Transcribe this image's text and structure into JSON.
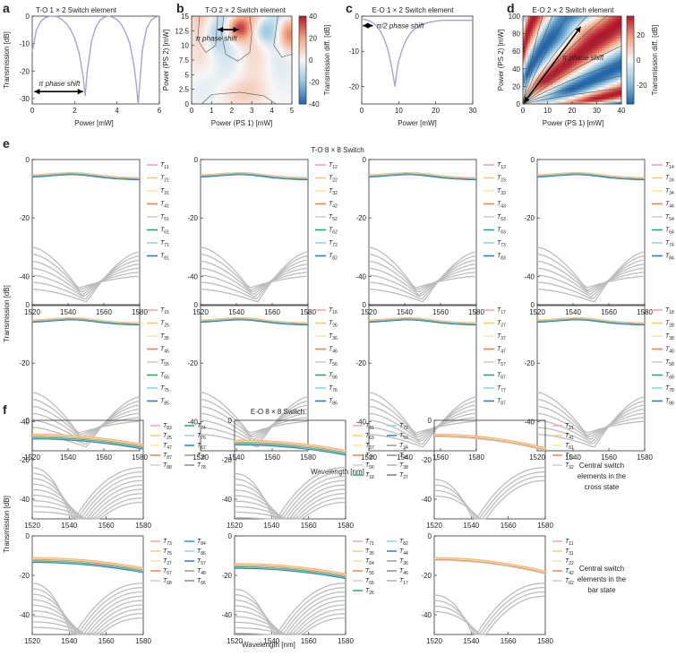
{
  "panel_letters": [
    "a",
    "b",
    "c",
    "d",
    "e",
    "f"
  ],
  "chart_data": [
    {
      "id": "a",
      "type": "line",
      "title": "T-O 1 × 2 Switch element",
      "xlabel": "Power [mW]",
      "ylabel": "Transmission [dB]",
      "xlim": [
        0,
        6
      ],
      "ylim": [
        -32,
        0
      ],
      "xticks": [
        "0",
        "2",
        "4",
        "6"
      ],
      "yticks": [
        "0",
        "-10",
        "-20",
        "-30"
      ],
      "annotation": "π phase shift",
      "arrow": {
        "x1": 0.1,
        "x2": 2.4,
        "y": -27.5
      },
      "series": [
        {
          "color": "#a7a4d2",
          "x": [
            0,
            0.2,
            0.4,
            0.6,
            0.8,
            1.0,
            1.2,
            1.4,
            1.6,
            1.8,
            2.0,
            2.2,
            2.4,
            2.5,
            2.6,
            2.8,
            3.0,
            3.2,
            3.4,
            3.6,
            3.8,
            4.0,
            4.2,
            4.4,
            4.6,
            4.8,
            4.9,
            5.0,
            5.2,
            5.4,
            5.6,
            5.8,
            6.0
          ],
          "y": [
            -13,
            -5,
            -2,
            -0.6,
            -0.1,
            0,
            -0.3,
            -1.2,
            -2.6,
            -4.8,
            -8,
            -13,
            -22,
            -29,
            -20,
            -9,
            -4,
            -1.5,
            -0.4,
            0,
            -0.4,
            -1.3,
            -3,
            -5.8,
            -10,
            -18,
            -24,
            -32,
            -12,
            -4.5,
            -1.6,
            -0.4,
            0
          ]
        }
      ]
    },
    {
      "id": "b",
      "type": "heatmap",
      "title": "T-O 2 × 2 Switch element",
      "xlabel": "Power (PS 1) [mW]",
      "ylabel": "Power (PS 2) [mW]",
      "colorbar_label": "Transmission diff. [dB]",
      "xlim": [
        0,
        5
      ],
      "ylim": [
        0,
        15
      ],
      "xticks": [
        "0",
        "1",
        "2",
        "3",
        "4",
        "5"
      ],
      "yticks": [
        "0",
        "2.5",
        "5",
        "7.5",
        "10",
        "12.5",
        "15"
      ],
      "zlim": [
        -40,
        40
      ],
      "cticks": [
        "40",
        "20",
        "0",
        "-20",
        "-40"
      ],
      "annotation": "π phase shift"
    },
    {
      "id": "c",
      "type": "line",
      "title": "E-O 1 × 2 Switch element",
      "xlabel": "Power  [mW]",
      "ylabel": "Transmission [dB]",
      "xlim": [
        0,
        30
      ],
      "ylim": [
        -25,
        0
      ],
      "xticks": [
        "0",
        "10",
        "20",
        "30"
      ],
      "yticks": [
        "0",
        "-10",
        "-20"
      ],
      "annotation": "π/2 phase shift",
      "arrow": {
        "x1": 0.3,
        "x2": 3.0,
        "y": -2.7
      },
      "series": [
        {
          "color": "#a7a4d2",
          "x": [
            0,
            1,
            2,
            3,
            4,
            5,
            6,
            7,
            7.5,
            8,
            8.5,
            9,
            9.5,
            10,
            11,
            12,
            13,
            14,
            16,
            18,
            20,
            22,
            24,
            26,
            28,
            30
          ],
          "y": [
            -0.8,
            -1,
            -1.3,
            -1.9,
            -2.8,
            -4.2,
            -6.3,
            -9.3,
            -11.5,
            -14,
            -17,
            -20,
            -15.5,
            -12.8,
            -9.3,
            -6.8,
            -5.1,
            -3.9,
            -2.5,
            -1.8,
            -1.4,
            -1.2,
            -1.2,
            -1.2,
            -1.2,
            -1.2
          ]
        }
      ]
    },
    {
      "id": "d",
      "type": "heatmap",
      "title": "E-O 2 × 2 Switch element",
      "xlabel": "Power (PS 1) [mW]",
      "ylabel": "Power (PS 2) [mW]",
      "colorbar_label": "Transmission diff. [dB]",
      "xlim": [
        0,
        40
      ],
      "ylim": [
        0,
        100
      ],
      "xticks": [
        "0",
        "10",
        "20",
        "30",
        "40"
      ],
      "yticks": [
        "0",
        "20",
        "40",
        "60",
        "80",
        "100"
      ],
      "zlim": [
        -35,
        35
      ],
      "cticks": [
        "20",
        "0",
        "-20"
      ],
      "annotation": "π phase shift"
    },
    {
      "id": "e",
      "type": "line",
      "title": "T-O 8 × 8 Switch",
      "xlabel": "Wavelength [nm]",
      "ylabel": "Transmission [dB]",
      "xlim": [
        1520,
        1580
      ],
      "ylim": [
        -50,
        0
      ],
      "xticks": [
        "1520",
        "1540",
        "1560",
        "1580"
      ],
      "yticks": [
        "0",
        "-20",
        "-40"
      ],
      "legend_colors": [
        "#f3a6ae",
        "#f2cf6c",
        "#fbe7a0",
        "#f1844c",
        "#cfcfcf",
        "#2aa86d",
        "#8fd7d3",
        "#357eb8"
      ],
      "subplots": [
        {
          "legend": [
            "T11",
            "T21",
            "T31",
            "T41",
            "T51",
            "T61",
            "T71",
            "T81"
          ]
        },
        {
          "legend": [
            "T12",
            "T22",
            "T32",
            "T42",
            "T52",
            "T62",
            "T72",
            "T82"
          ]
        },
        {
          "legend": [
            "T13",
            "T23",
            "T33",
            "T43",
            "T53",
            "T63",
            "T73",
            "T83"
          ]
        },
        {
          "legend": [
            "T14",
            "T24",
            "T34",
            "T44",
            "T54",
            "T64",
            "T74",
            "T84"
          ]
        },
        {
          "legend": [
            "T15",
            "T25",
            "T35",
            "T45",
            "T55",
            "T65",
            "T75",
            "T85"
          ]
        },
        {
          "legend": [
            "T16",
            "T26",
            "T36",
            "T46",
            "T56",
            "T66",
            "T76",
            "T86"
          ]
        },
        {
          "legend": [
            "T17",
            "T27",
            "T37",
            "T47",
            "T57",
            "T67",
            "T77",
            "T87"
          ]
        },
        {
          "legend": [
            "T18",
            "T28",
            "T38",
            "T48",
            "T58",
            "T68",
            "T78",
            "T88"
          ]
        }
      ]
    },
    {
      "id": "f",
      "type": "line",
      "title": "E-O 8 × 8 Switch",
      "xlabel": "Wavelength [nm]",
      "ylabel": "Transmission [dB]",
      "xlim": [
        1520,
        1580
      ],
      "ylim": [
        -50,
        0
      ],
      "xticks": [
        "1520",
        "1540",
        "1560",
        "1580"
      ],
      "yticks": [
        "0",
        "-20",
        "-40"
      ],
      "row_labels": [
        [
          "Central switch",
          "elements in the",
          "cross state"
        ],
        [
          "Central switch",
          "elements in the",
          "bar state"
        ]
      ],
      "subplots": [
        {
          "legend": [
            "T83",
            "T25",
            "T47",
            "T87",
            "T88",
            "T74",
            "T76",
            "T67",
            "T38",
            "T78"
          ]
        },
        {
          "legend": [
            "T81",
            "T63",
            "T37",
            "T85",
            "T56",
            "T18",
            "T72",
            "T53",
            "T34",
            "T45",
            "T38",
            "T27"
          ]
        },
        {
          "legend": [
            "T21",
            "T41",
            "T61",
            "T12",
            "T32"
          ]
        },
        {
          "legend": [
            "T73",
            "T75",
            "T27",
            "T57",
            "T68",
            "T84",
            "T86",
            "T57",
            "T48",
            "T66"
          ]
        },
        {
          "legend": [
            "T71",
            "T35",
            "T64",
            "T55",
            "T65",
            "T26",
            "T82",
            "T44",
            "T36",
            "T46",
            "T17"
          ]
        },
        {
          "legend": [
            "T11",
            "T31",
            "T22",
            "T42",
            "T62"
          ]
        }
      ]
    }
  ]
}
